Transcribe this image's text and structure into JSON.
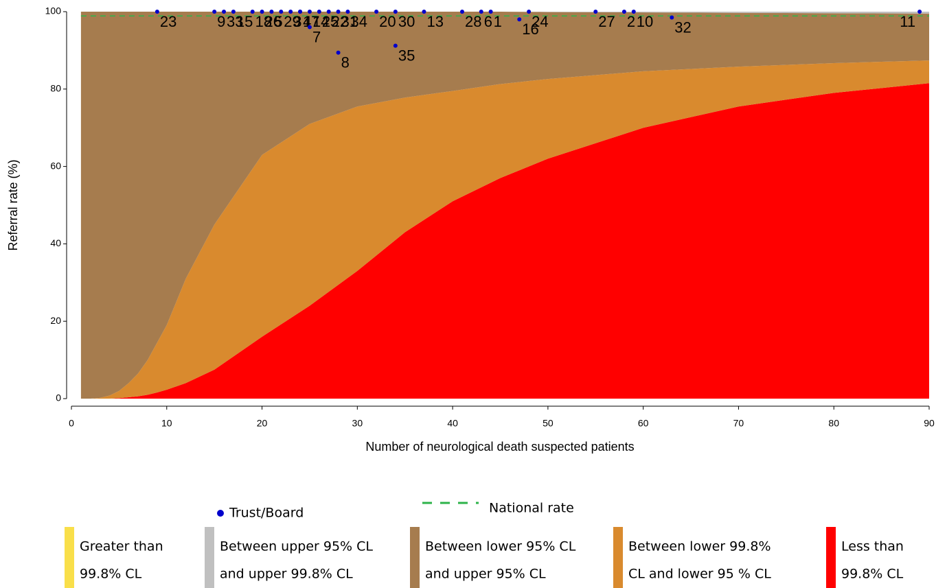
{
  "chart_data": {
    "type": "area",
    "xlabel": "Number of neurological death suspected patients",
    "ylabel": "Referral rate (%)",
    "xlim": [
      0,
      90
    ],
    "ylim": [
      0,
      100
    ],
    "xticks": [
      0,
      10,
      20,
      30,
      40,
      50,
      60,
      70,
      80,
      90
    ],
    "yticks": [
      0,
      20,
      40,
      60,
      80,
      100
    ],
    "x": [
      1,
      2,
      3,
      4,
      5,
      6,
      7,
      8,
      9,
      10,
      12,
      15,
      20,
      25,
      30,
      35,
      40,
      45,
      50,
      60,
      70,
      80,
      90
    ],
    "series": [
      {
        "name": [
          "Greater than",
          "99.8% CL"
        ],
        "color": "#f9df4a",
        "values": [
          100,
          100,
          100,
          100,
          100,
          100,
          100,
          100,
          100,
          100,
          100,
          100,
          100,
          100,
          100,
          100,
          100,
          100,
          100,
          100,
          100,
          100,
          100
        ]
      },
      {
        "name": [
          "Between upper 95% CL",
          "and upper 99.8% CL"
        ],
        "color": "#c0c0c0",
        "values": [
          100,
          100,
          100,
          100,
          100,
          100,
          100,
          100,
          100,
          100,
          100,
          100,
          100,
          100,
          100,
          100,
          100,
          100,
          100,
          100,
          100,
          100,
          100
        ]
      },
      {
        "name": [
          "Between lower 95% CL",
          "and upper 95% CL"
        ],
        "color": "#a67c4e",
        "values": [
          100,
          100,
          100,
          100,
          100,
          100,
          100,
          100,
          100,
          100,
          100,
          100,
          100,
          100,
          100,
          100,
          100,
          100,
          99.9,
          99.8,
          99.7,
          99.6,
          99.5
        ]
      },
      {
        "name": [
          "Between lower 99.8%",
          "CL and lower 95 % CL"
        ],
        "color": "#d98a2e",
        "values": [
          0,
          0,
          0.2,
          0.8,
          2,
          4,
          6.5,
          10,
          14.5,
          19,
          31,
          45,
          63,
          71,
          75.5,
          77.8,
          79.5,
          81.3,
          82.6,
          84.6,
          85.8,
          86.7,
          87.4
        ]
      },
      {
        "name": [
          "Less than",
          "99.8% CL"
        ],
        "color": "#ff0000",
        "values": [
          0,
          0,
          0,
          0,
          0.15,
          0.35,
          0.6,
          1,
          1.6,
          2.3,
          4,
          7.5,
          16,
          24,
          33,
          43,
          51,
          57,
          62,
          70,
          75.5,
          79,
          81.5
        ]
      }
    ],
    "points": {
      "name": "Trust/Board",
      "color": "#0000cc",
      "x": [
        9,
        15,
        16,
        17,
        19,
        20,
        21,
        22,
        23,
        24,
        24,
        25,
        26,
        25,
        27,
        28,
        28,
        29,
        32,
        34,
        34,
        37,
        41,
        43,
        44,
        47,
        48,
        55,
        58,
        59,
        63,
        89
      ],
      "values": [
        100,
        100,
        100,
        100,
        100,
        100,
        100,
        100,
        100,
        100,
        100,
        100,
        100,
        96,
        100,
        100,
        89.4,
        100,
        100,
        100,
        91.2,
        100,
        100,
        100,
        100,
        98,
        100,
        100,
        100,
        100,
        98.5,
        100
      ],
      "labels": [
        "23",
        "9",
        "33",
        "15",
        "18",
        "26",
        "5",
        "29",
        "3",
        "17",
        "4",
        "14",
        "25",
        "7",
        "22",
        "31",
        "8",
        "34",
        "20",
        "30",
        "35",
        "13",
        "28",
        "6",
        "1",
        "16",
        "24",
        "27",
        "2",
        "10",
        "32",
        "11"
      ]
    },
    "national_rate": {
      "name": "National rate",
      "value": 98.9,
      "color": "#2db34a"
    }
  }
}
